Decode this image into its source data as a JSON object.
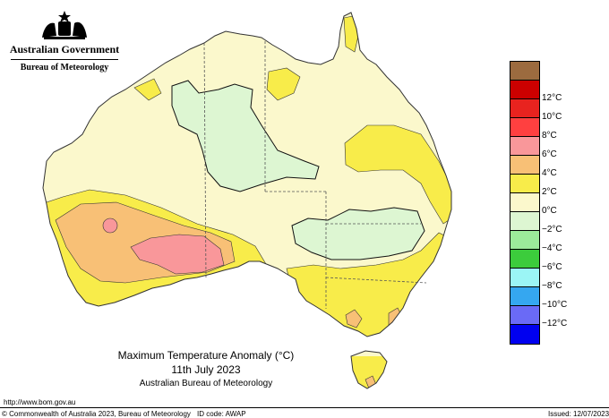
{
  "logo": {
    "government": "Australian Government",
    "bureau": "Bureau of Meteorology"
  },
  "caption": {
    "title": "Maximum Temperature Anomaly (°C)",
    "date": "11th July 2023",
    "agency": "Australian Bureau of Meteorology"
  },
  "footer": {
    "url": "http://www.bom.gov.au",
    "copyright": "© Commonwealth of Australia 2023, Bureau of Meteorology",
    "id_code": "ID code: AWAP",
    "issued": "Issued: 12/07/2023"
  },
  "legend": [
    {
      "label": "",
      "color": "#9c6b3f"
    },
    {
      "label": "12°C",
      "color": "#cc0000"
    },
    {
      "label": "10°C",
      "color": "#e8231f"
    },
    {
      "label": "8°C",
      "color": "#ff4040"
    },
    {
      "label": "6°C",
      "color": "#f9979a"
    },
    {
      "label": "4°C",
      "color": "#f8c076"
    },
    {
      "label": "2°C",
      "color": "#f8ec4a"
    },
    {
      "label": "0°C",
      "color": "#fbf8cc"
    },
    {
      "label": "−2°C",
      "color": "#ddf6d2"
    },
    {
      "label": "−4°C",
      "color": "#9ceb9a"
    },
    {
      "label": "−6°C",
      "color": "#3ccc3c"
    },
    {
      "label": "−8°C",
      "color": "#9bf5f5"
    },
    {
      "label": "−10°C",
      "color": "#35a7f0"
    },
    {
      "label": "−12°C",
      "color": "#6a6af6"
    },
    {
      "label": "",
      "color": "#0000f0"
    }
  ]
}
